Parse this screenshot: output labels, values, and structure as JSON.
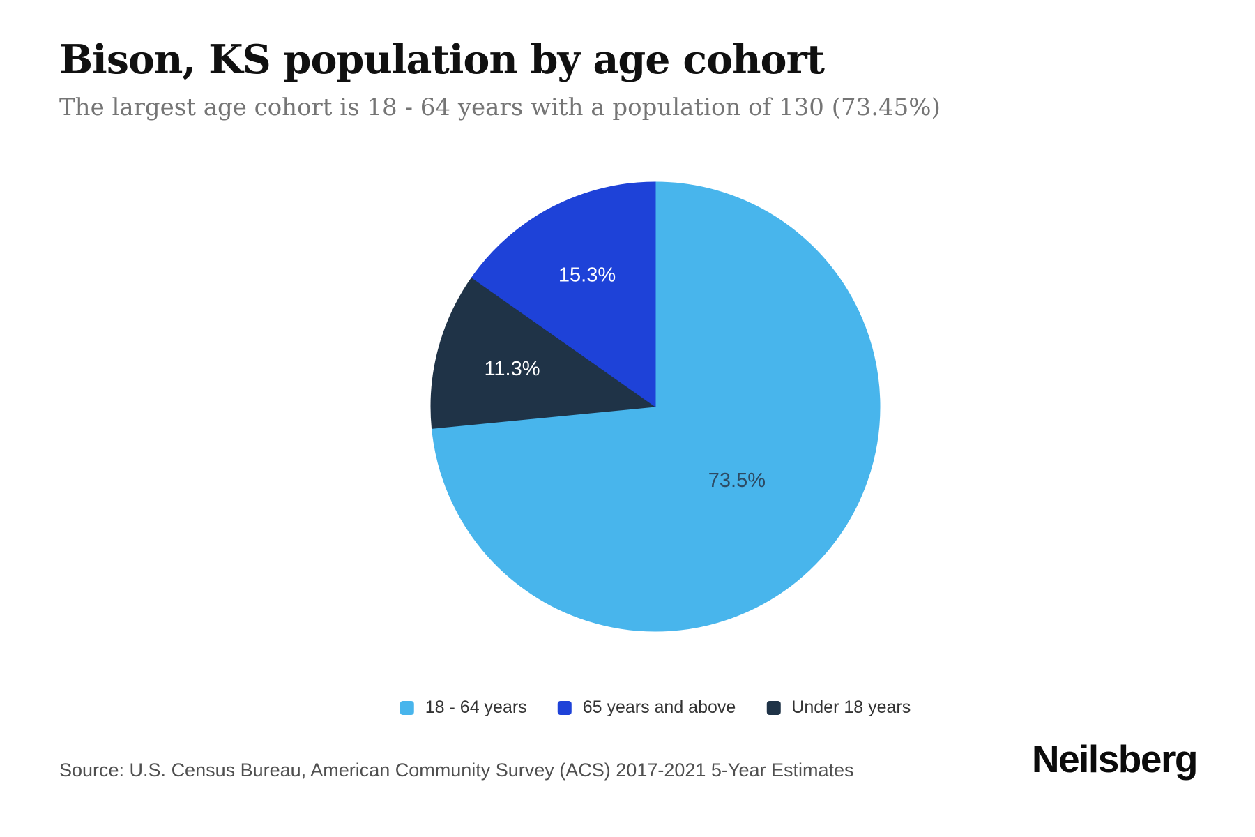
{
  "chart_data": {
    "type": "pie",
    "title": "Bison, KS population by age cohort",
    "subtitle": "The largest age cohort is 18 - 64 years with a population of 130 (73.45%)",
    "slices": [
      {
        "label": "18 - 64 years",
        "value": 73.45,
        "display": "73.5%",
        "color": "#48b5ec",
        "label_color": "#2d4a63"
      },
      {
        "label": "65 years and above",
        "value": 15.25,
        "display": "15.3%",
        "color": "#1e42d8",
        "label_color": "#ffffff"
      },
      {
        "label": "Under 18 years",
        "value": 11.3,
        "display": "11.3%",
        "color": "#1f3347",
        "label_color": "#ffffff"
      }
    ],
    "clockwise_order": [
      0,
      2,
      1
    ],
    "start_angle_deg": 0,
    "direction": "clockwise",
    "legend_position": "bottom",
    "largest_cohort": {
      "label": "18 - 64 years",
      "population": 130,
      "share": "73.45%"
    }
  },
  "footer": {
    "source": "Source: U.S. Census Bureau, American Community Survey (ACS) 2017-2021 5-Year Estimates",
    "brand": "Neilsberg"
  },
  "colors": {
    "background": "#ffffff",
    "title_text": "#101010",
    "subtitle_text": "#757575",
    "legend_text": "#333333",
    "source_text": "#4f4f4f",
    "brand_text": "#0b0b0b"
  }
}
